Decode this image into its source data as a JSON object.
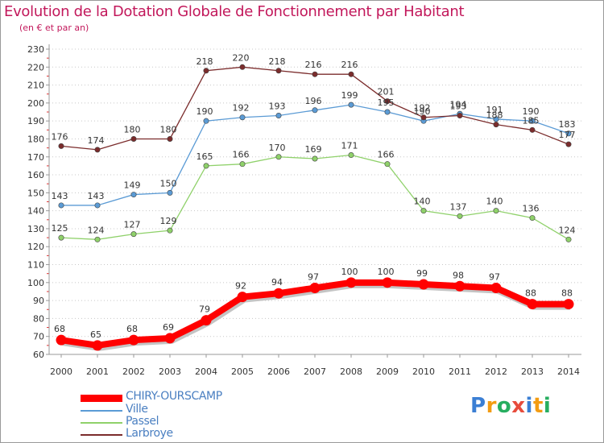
{
  "title": "Evolution de la Dotation Globale de Fonctionnement par Habitant",
  "subtitle": "(en € et par an)",
  "logo": {
    "text": "Proxiti",
    "letter_colors": [
      "#3b7fd4",
      "#f39c12",
      "#27ae60",
      "#e74c3c",
      "#3b7fd4",
      "#f39c12",
      "#27ae60"
    ]
  },
  "chart_data": {
    "type": "line",
    "title": "Evolution de la Dotation Globale de Fonctionnement par Habitant",
    "subtitle": "(en € et par an)",
    "xlabel": "",
    "ylabel": "",
    "x": [
      "2000",
      "2001",
      "2002",
      "2003",
      "2004",
      "2005",
      "2006",
      "2007",
      "2008",
      "2009",
      "2010",
      "2011",
      "2012",
      "2013",
      "2014"
    ],
    "ylim": [
      60,
      230
    ],
    "yticks": [
      60,
      70,
      80,
      90,
      100,
      110,
      120,
      130,
      140,
      150,
      160,
      170,
      180,
      190,
      200,
      210,
      220,
      230
    ],
    "grid": "horizontal-dotted",
    "legend_position": "bottom-left",
    "series": [
      {
        "name": "CHIRY-OURSCAMP",
        "color": "#ff0000",
        "thick": true,
        "values": [
          68,
          65,
          68,
          69,
          79,
          92,
          94,
          97,
          100,
          100,
          99,
          98,
          97,
          88,
          88
        ],
        "labels": [
          "68",
          "65",
          "68",
          "69",
          "79",
          "92",
          "94",
          "97",
          "100",
          "100",
          "99",
          "98",
          "97",
          "88",
          "88"
        ]
      },
      {
        "name": "Ville",
        "color": "#5b9bd5",
        "thick": false,
        "values": [
          143,
          143,
          149,
          150,
          190,
          192,
          193,
          196,
          199,
          195,
          190,
          194,
          191,
          190,
          183
        ],
        "labels": [
          "143",
          "143",
          "149",
          "150",
          "190",
          "192",
          "193",
          "196",
          "199",
          "195",
          "190",
          "194",
          "191",
          "190",
          "183"
        ]
      },
      {
        "name": "Passel",
        "color": "#8fd16a",
        "thick": false,
        "values": [
          125,
          124,
          127,
          129,
          165,
          166,
          170,
          169,
          171,
          166,
          140,
          137,
          140,
          136,
          124
        ],
        "labels": [
          "125",
          "124",
          "127",
          "129",
          "165",
          "166",
          "170",
          "169",
          "171",
          "166",
          "140",
          "137",
          "140",
          "136",
          "124"
        ]
      },
      {
        "name": "Larbroye",
        "color": "#7b2c2c",
        "thick": false,
        "values": [
          176,
          174,
          180,
          180,
          218,
          220,
          218,
          216,
          216,
          201,
          192,
          193,
          188,
          185,
          177
        ],
        "labels": [
          "176",
          "174",
          "180",
          "180",
          "218",
          "220",
          "218",
          "216",
          "216",
          "201",
          "192",
          "193",
          "188",
          "185",
          "177"
        ]
      }
    ]
  }
}
